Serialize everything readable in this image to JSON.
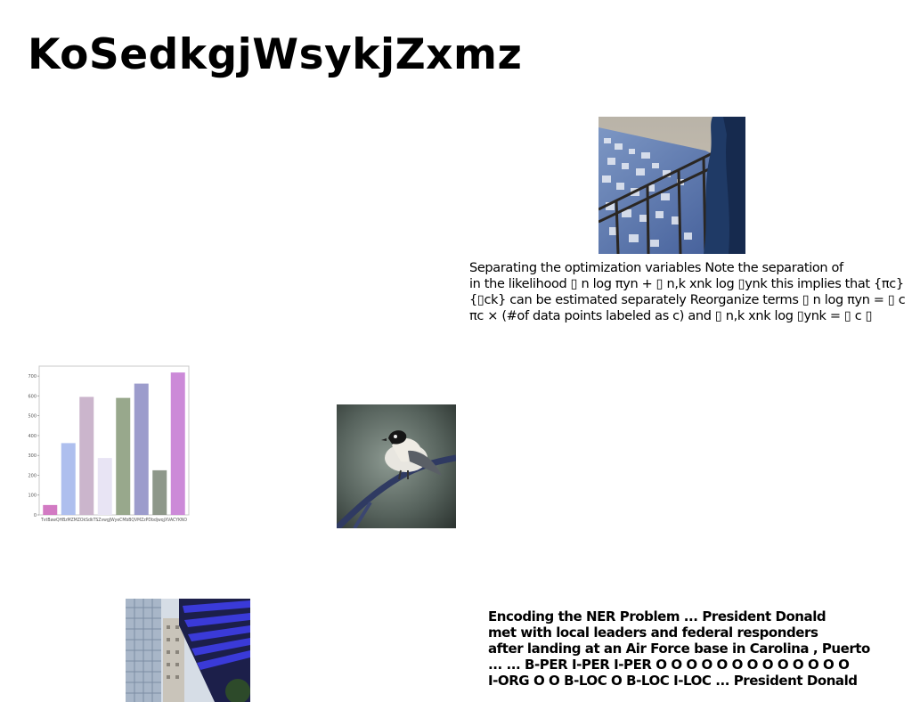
{
  "title": "KoSedkgjWsykjZxmz",
  "paragraph_top": {
    "lines": [
      "Separating the optimization variables Note the separation of",
      "in the likelihood ▯ n log πyn + ▯ n,k xnk log ▯ynk this implies that {πc}",
      "{▯ck} can be estimated separately Reorganize terms ▯ n log πyn = ▯ c",
      "πc × (#of data points labeled as c) and ▯ n,k xnk log ▯ynk = ▯ c ▯"
    ]
  },
  "paragraph_bottom": {
    "lines": [
      "Encoding the NER Problem ... President Donald",
      "met with local leaders and federal responders",
      "after landing at an Air Force base in Carolina , Puerto",
      "... ... B-PER I-PER I-PER O O O O O O O O O O O O O",
      "I-ORG O O B-LOC O B-LOC I-LOC ... President Donald"
    ]
  },
  "images": {
    "city": "photo of a blue-and-white hillside town viewed from a balcony railing",
    "bird": "photo of a small black-capped bird perched on a branch",
    "building": "photo of tall modern buildings with blue glass panels"
  },
  "chart_data": {
    "type": "bar",
    "categories": [
      "TvtBaw",
      "Q8BzMZM",
      "ZOkSdk",
      "TSZvwg",
      "JWyeCMbB",
      "QVMZzP",
      "Dbdjwqj",
      "XVACYKNO"
    ],
    "tick_labels_raw": "TvtBawQHBzMZMZOkSdkTSZvwgJWyeCMbBQVMZzPDbdjwqjXVACYKNO",
    "values": [
      50,
      362,
      595,
      287,
      590,
      662,
      225,
      718
    ],
    "colors": [
      "#d27ac3",
      "#aebfee",
      "#cbb5cc",
      "#e8e4f4",
      "#98a88c",
      "#9c9ccc",
      "#8e988a",
      "#cc8ad8"
    ],
    "yticks": [
      0,
      100,
      200,
      300,
      400,
      500,
      600,
      700
    ],
    "ylim": [
      0,
      750
    ],
    "title": "",
    "xlabel": "",
    "ylabel": "",
    "grid": false
  }
}
